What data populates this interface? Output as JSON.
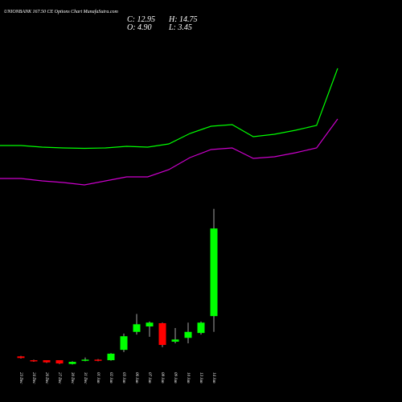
{
  "chart_data": [
    {
      "type": "line",
      "series": [
        {
          "color": "#00ff00",
          "values": [
            119,
            119,
            117,
            116,
            115.5,
            116,
            118,
            117,
            121,
            134,
            143,
            145,
            130,
            133,
            138,
            144,
            215
          ]
        },
        {
          "color": "#cc00cc",
          "values": [
            78,
            78,
            75,
            73,
            70,
            75,
            80,
            80,
            89,
            104,
            114,
            116,
            103,
            105,
            110,
            116,
            152
          ]
        }
      ]
    },
    {
      "type": "candlestick",
      "title": "UNIONBANK 167.50 CE Options Chart MunafaSutra.com",
      "ohlc_labels": [
        "C: 12.95",
        "H: 14.75",
        "O: 4.90",
        "L: 3.45"
      ],
      "up_color": "#00ff00",
      "down_color": "#ff0000",
      "categories": [
        "23 Dec",
        "24 Dec",
        "26 Dec",
        "27 Dec",
        "30 Dec",
        "31 Dec",
        "01 Jan",
        "02 Jan",
        "03 Jan",
        "06 Jan",
        "07 Jan",
        "08 Jan",
        "09 Jan",
        "10 Jan",
        "13 Jan",
        "14 Jan"
      ],
      "open": [
        1.2,
        0.85,
        0.85,
        0.85,
        0.5,
        0.8,
        0.9,
        0.85,
        1.8,
        3.45,
        3.95,
        4.25,
        2.55,
        2.9,
        3.35,
        4.9
      ],
      "high": [
        1.25,
        0.9,
        0.85,
        0.85,
        0.75,
        1.1,
        0.95,
        1.5,
        3.3,
        5.1,
        4.4,
        4.3,
        3.8,
        4.3,
        4.4,
        14.75
      ],
      "low": [
        1.0,
        0.7,
        0.6,
        0.5,
        0.45,
        0.75,
        0.75,
        0.8,
        1.6,
        3.2,
        3.0,
        2.05,
        2.4,
        2.4,
        3.2,
        3.45
      ],
      "close": [
        1.05,
        0.75,
        0.65,
        0.55,
        0.7,
        0.9,
        0.8,
        1.45,
        3.05,
        4.15,
        4.3,
        2.25,
        2.75,
        3.45,
        4.3,
        12.95
      ]
    }
  ]
}
